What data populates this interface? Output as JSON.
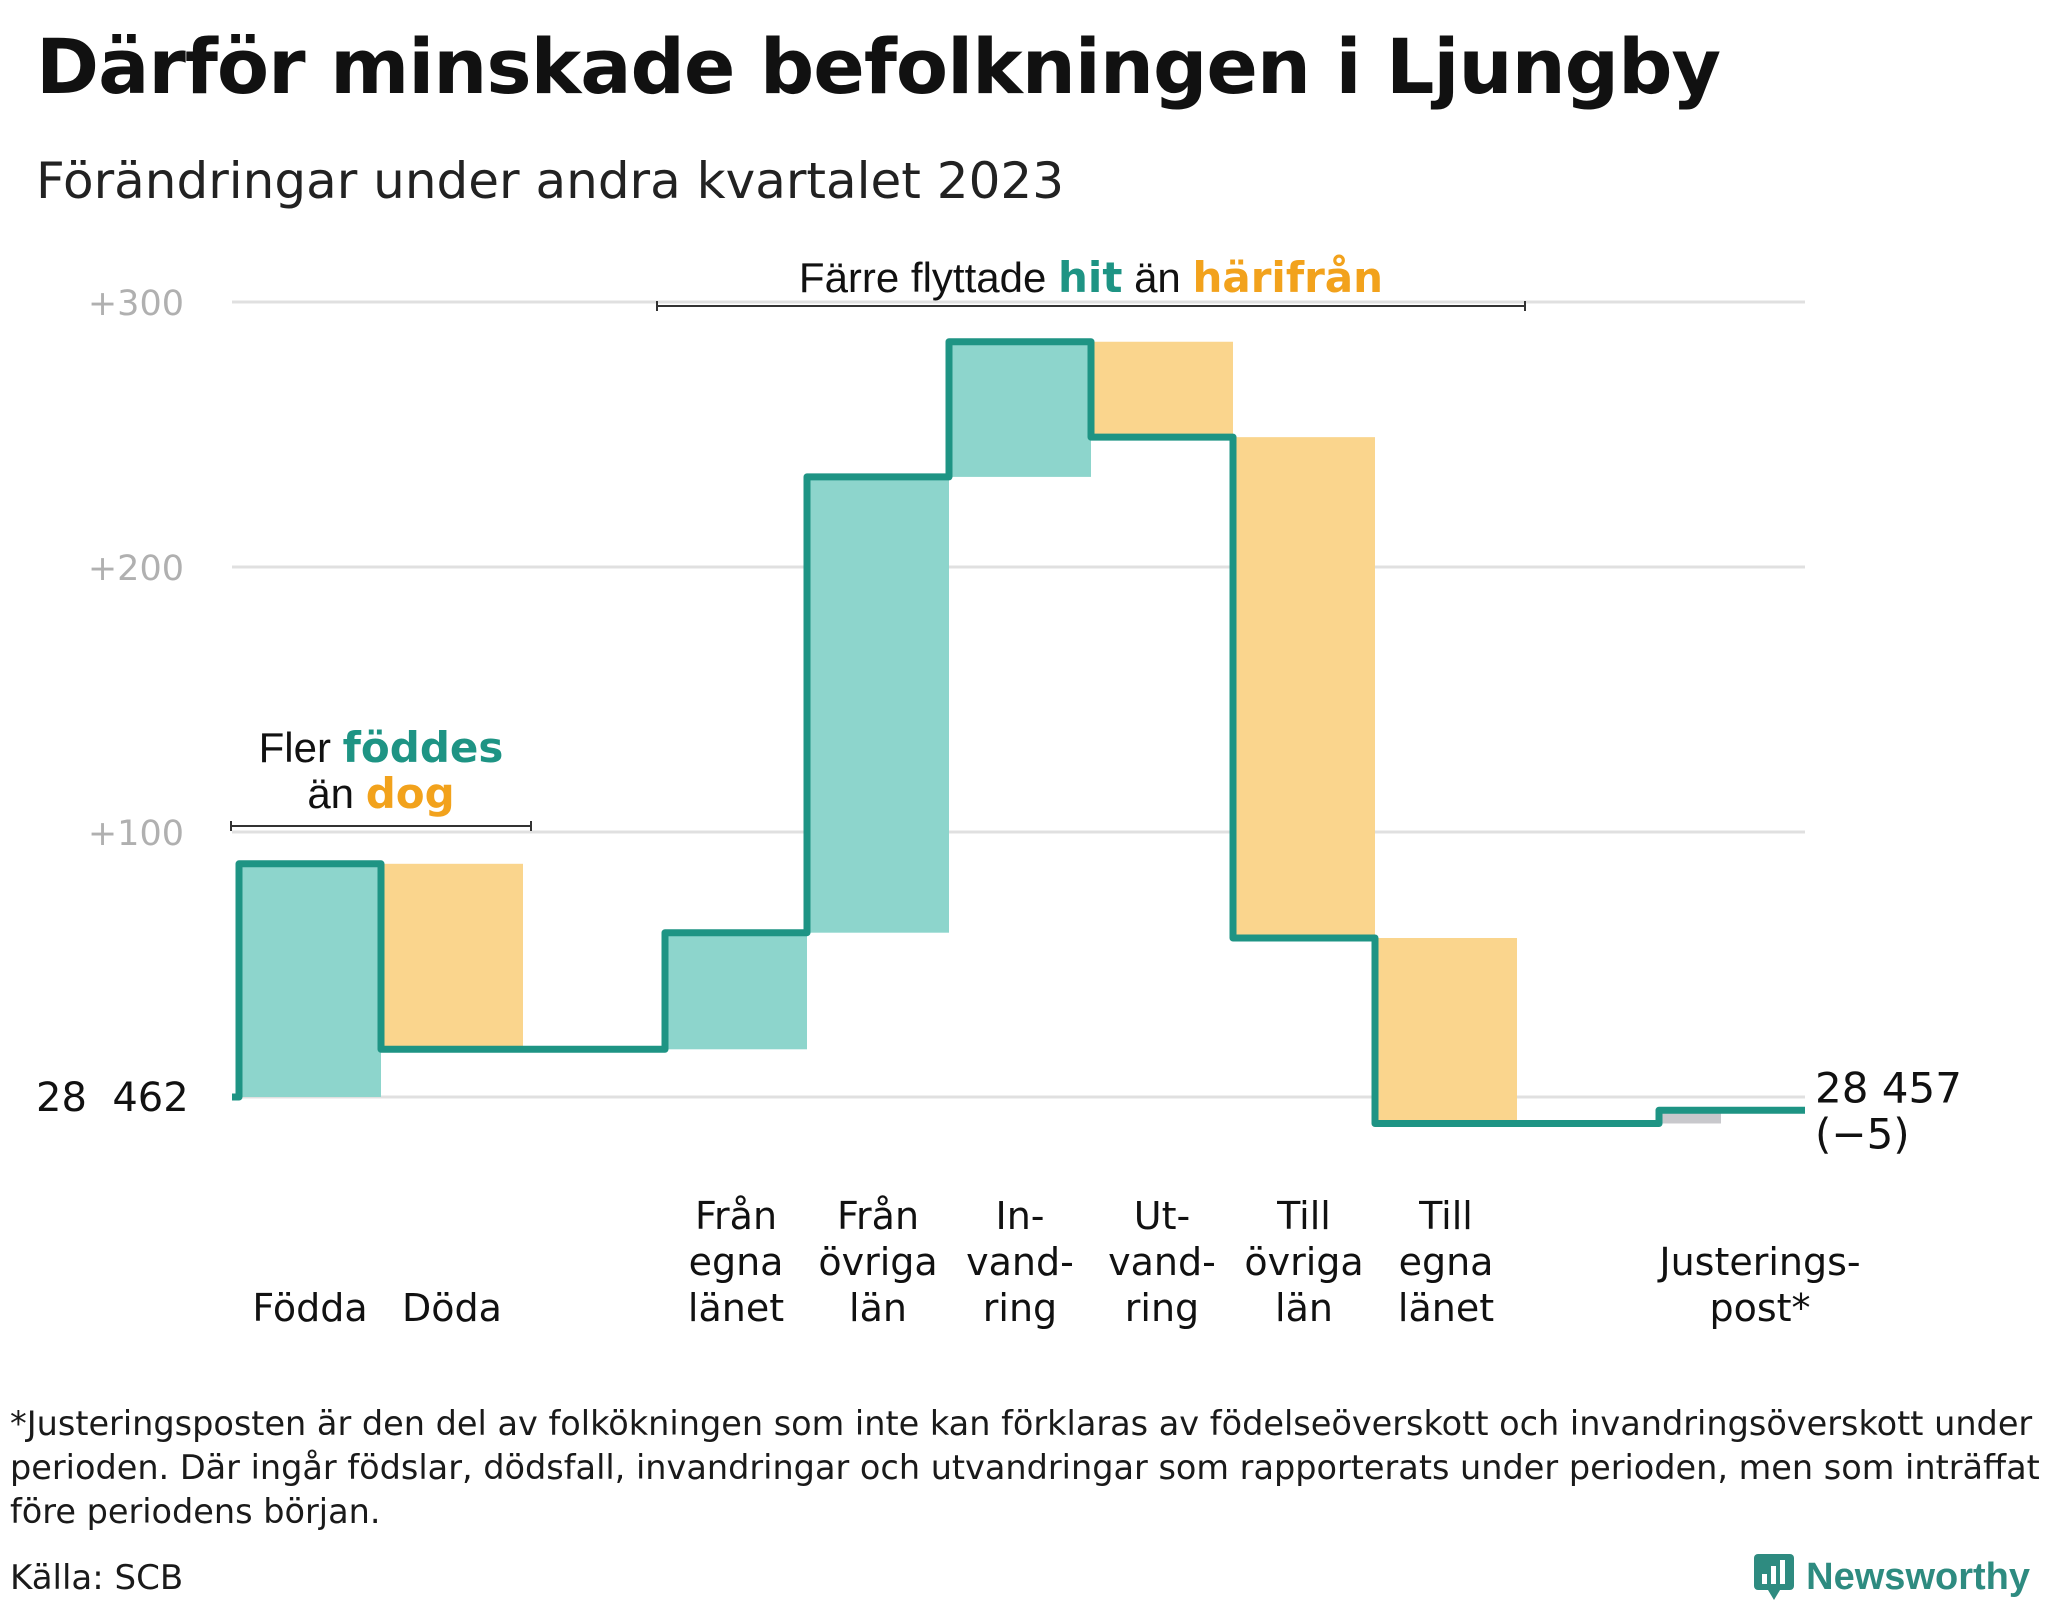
{
  "title": "Därför minskade befolkningen i Ljungby",
  "subtitle": "Förändringar under andra kvartalet 2023",
  "chart_data": {
    "type": "waterfall",
    "title": "Därför minskade befolkningen i Ljungby",
    "subtitle": "Förändringar under andra kvartalet 2023",
    "ylim": [
      -15,
      310
    ],
    "ytick_values": [
      100,
      200,
      300
    ],
    "yticks": [
      "+100",
      "+200",
      "+300"
    ],
    "grid": true,
    "start_label": "28  462",
    "end_label": "28 457",
    "end_change_label": "(−5)",
    "steps": [
      {
        "label_lines": [
          "Födda"
        ],
        "label": "Födda",
        "value": 88,
        "kind": "in"
      },
      {
        "label_lines": [
          "Döda"
        ],
        "label": "Döda",
        "value": -70,
        "kind": "out"
      },
      {
        "label_lines": [
          "Från",
          "egna",
          "länet"
        ],
        "label": "Från egna länet",
        "value": 44,
        "kind": "in"
      },
      {
        "label_lines": [
          "Från",
          "övriga",
          "län"
        ],
        "label": "Från övriga län",
        "value": 172,
        "kind": "in"
      },
      {
        "label_lines": [
          "In-",
          "vand-",
          "ring"
        ],
        "label": "Invandring",
        "value": 51,
        "kind": "in"
      },
      {
        "label_lines": [
          "Ut-",
          "vand-",
          "ring"
        ],
        "label": "Utvandring",
        "value": -36,
        "kind": "out"
      },
      {
        "label_lines": [
          "Till",
          "övriga",
          "län"
        ],
        "label": "Till övriga län",
        "value": -189,
        "kind": "out"
      },
      {
        "label_lines": [
          "Till",
          "egna",
          "länet"
        ],
        "label": "Till egna länet",
        "value": -70,
        "kind": "out"
      },
      {
        "label_lines": [
          "Justerings-",
          "post*"
        ],
        "label": "Justeringspost*",
        "value": 5,
        "kind": "adjust"
      }
    ],
    "annotations": [
      {
        "lines": [
          [
            "Fler ",
            "föddes"
          ],
          [
            "än ",
            "dog"
          ]
        ],
        "from": 0,
        "to": 1
      },
      {
        "lines": [
          [
            "Färre flyttade ",
            "hit",
            " än ",
            "härifrån"
          ]
        ],
        "from": 2,
        "to": 7
      }
    ],
    "colors": {
      "in": "#8dd5cc",
      "out": "#fad58d",
      "adjust": "#c8c8cc",
      "line": "#1e9484",
      "grid": "#e0e0e0",
      "tick": "#b0b0b0",
      "highlight_in": "#1e9484",
      "highlight_out": "#f2a21c"
    }
  },
  "footnote": "*Justeringsposten är den del av folkökningen som inte kan förklaras av födelseöverskott och invandringsöverskott under perioden. Där ingår födslar, dödsfall, invandringar och utvandringar som rapporterats under perioden, men som inträffat före periodens början.",
  "source": "Källa: SCB",
  "brand": {
    "name": "Newsworthy",
    "icon": "newsworthy-logo-icon",
    "color": "#2e8b80"
  }
}
